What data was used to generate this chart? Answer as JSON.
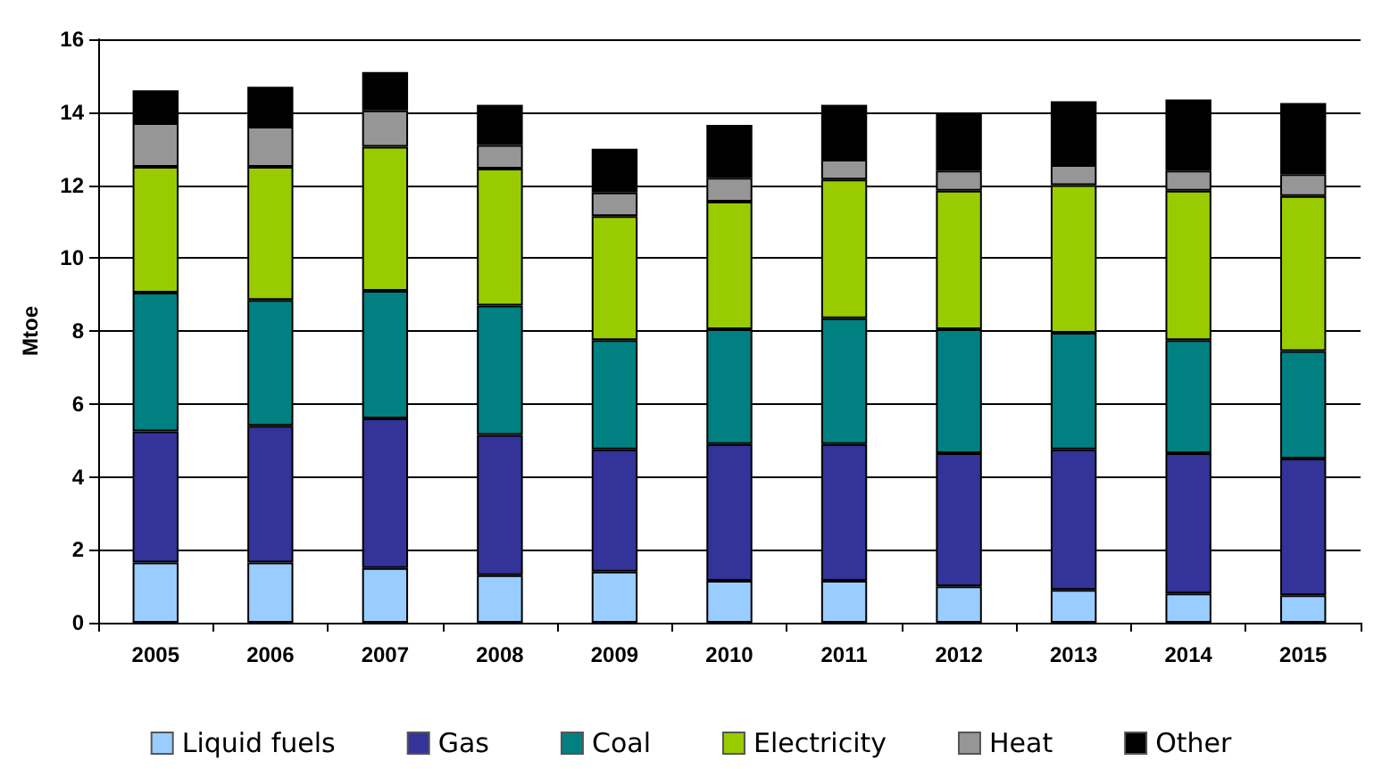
{
  "chart_data": {
    "type": "bar",
    "stacked": true,
    "ylabel": "Mtoe",
    "categories": [
      "2005",
      "2006",
      "2007",
      "2008",
      "2009",
      "2010",
      "2011",
      "2012",
      "2013",
      "2014",
      "2015"
    ],
    "series": [
      {
        "name": "Liquid fuels",
        "color": "#99ccff",
        "values": [
          1.65,
          1.65,
          1.5,
          1.3,
          1.4,
          1.15,
          1.15,
          1.0,
          0.9,
          0.8,
          0.75
        ]
      },
      {
        "name": "Gas",
        "color": "#333399",
        "values": [
          3.6,
          3.75,
          4.1,
          3.85,
          3.35,
          3.75,
          3.75,
          3.65,
          3.85,
          3.85,
          3.75
        ]
      },
      {
        "name": "Coal",
        "color": "#008080",
        "values": [
          3.8,
          3.45,
          3.5,
          3.55,
          3.0,
          3.15,
          3.45,
          3.4,
          3.2,
          3.1,
          2.95
        ]
      },
      {
        "name": "Electricity",
        "color": "#99cc00",
        "values": [
          3.45,
          3.65,
          3.95,
          3.75,
          3.4,
          3.5,
          3.8,
          3.8,
          4.05,
          4.1,
          4.25
        ]
      },
      {
        "name": "Heat",
        "color": "#969696",
        "values": [
          1.2,
          1.1,
          1.0,
          0.65,
          0.65,
          0.65,
          0.55,
          0.55,
          0.55,
          0.55,
          0.6
        ]
      },
      {
        "name": "Other",
        "color": "#000000",
        "values": [
          0.9,
          1.1,
          1.05,
          1.1,
          1.2,
          1.45,
          1.5,
          1.55,
          1.75,
          1.95,
          1.95
        ]
      }
    ],
    "ylim": [
      0,
      16
    ],
    "yticks": [
      0,
      2,
      4,
      6,
      8,
      10,
      12,
      14,
      16
    ],
    "grid": "y",
    "legend": "bottom"
  }
}
